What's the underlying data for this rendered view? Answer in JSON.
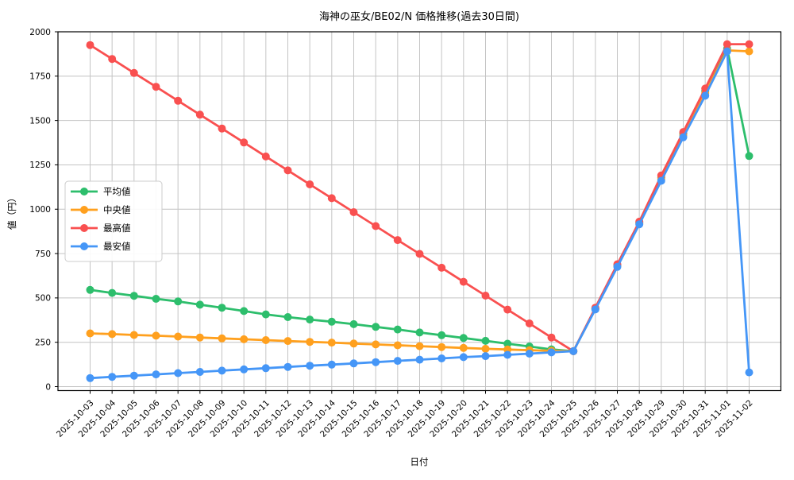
{
  "chart_data": {
    "type": "line",
    "title": "海神の巫女/BE02/N 価格推移(過去30日間)",
    "xlabel": "日付",
    "ylabel": "値（円）",
    "ylim": [
      0,
      2000
    ],
    "yticks": [
      0,
      250,
      500,
      750,
      1000,
      1250,
      1500,
      1750,
      2000
    ],
    "grid": true,
    "legend_position": "center-left",
    "x": [
      "2025-10-03",
      "2025-10-04",
      "2025-10-05",
      "2025-10-06",
      "2025-10-07",
      "2025-10-08",
      "2025-10-09",
      "2025-10-10",
      "2025-10-11",
      "2025-10-12",
      "2025-10-13",
      "2025-10-14",
      "2025-10-15",
      "2025-10-16",
      "2025-10-17",
      "2025-10-18",
      "2025-10-19",
      "2025-10-20",
      "2025-10-21",
      "2025-10-22",
      "2025-10-23",
      "2025-10-24",
      "2025-10-25",
      "2025-10-26",
      "2025-10-27",
      "2025-10-28",
      "2025-10-29",
      "2025-10-30",
      "2025-10-31",
      "2025-11-01",
      "2025-11-02"
    ],
    "series": [
      {
        "key": "average",
        "name": "平均値",
        "color": "#2dbe6c",
        "values": [
          545,
          528,
          512,
          495,
          480,
          462,
          445,
          426,
          407,
          392,
          378,
          366,
          352,
          337,
          322,
          305,
          290,
          274,
          258,
          242,
          226,
          210,
          200,
          440,
          685,
          925,
          1180,
          1425,
          1665,
          1905,
          1300
        ]
      },
      {
        "key": "median",
        "name": "中央値",
        "color": "#ffa01e",
        "values": [
          300,
          296,
          291,
          287,
          282,
          277,
          272,
          267,
          262,
          257,
          252,
          248,
          243,
          238,
          233,
          228,
          223,
          218,
          213,
          209,
          205,
          202,
          200,
          438,
          680,
          920,
          1170,
          1415,
          1655,
          1895,
          1890
        ]
      },
      {
        "key": "highest",
        "name": "最高値",
        "color": "#f95050",
        "values": [
          1925,
          1847,
          1768,
          1690,
          1611,
          1533,
          1455,
          1376,
          1297,
          1219,
          1140,
          1062,
          983,
          905,
          826,
          748,
          670,
          591,
          513,
          434,
          356,
          277,
          200,
          445,
          690,
          930,
          1190,
          1435,
          1680,
          1930,
          1930
        ]
      },
      {
        "key": "lowest",
        "name": "最安値",
        "color": "#4596f7",
        "values": [
          48,
          55,
          62,
          69,
          76,
          83,
          90,
          97,
          104,
          111,
          118,
          124,
          131,
          138,
          145,
          152,
          159,
          166,
          172,
          179,
          186,
          193,
          200,
          435,
          675,
          915,
          1160,
          1405,
          1640,
          1890,
          80
        ]
      }
    ],
    "colors": {
      "grid": "#c4c4c4",
      "spine": "#000000",
      "legend_border": "#cccccc",
      "background": "#ffffff"
    }
  }
}
